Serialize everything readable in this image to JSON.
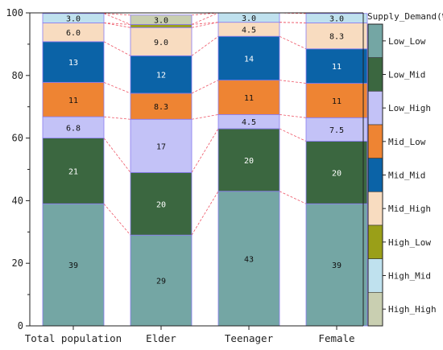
{
  "chart_data": {
    "type": "bar",
    "stacked": true,
    "percent": true,
    "categories": [
      "Total population",
      "Elder",
      "Teenager",
      "Female"
    ],
    "series": [
      {
        "name": "Low_Low",
        "color": "#74a6a4",
        "values": [
          39,
          29,
          43,
          39
        ],
        "labels": [
          "39",
          "29",
          "43",
          "39"
        ]
      },
      {
        "name": "Low_Mid",
        "color": "#3b6740",
        "values": [
          21,
          20,
          20,
          20
        ],
        "labels": [
          "21",
          "20",
          "20",
          "20"
        ]
      },
      {
        "name": "Low_High",
        "color": "#c3c2f7",
        "values": [
          6.8,
          17,
          4.5,
          7.5
        ],
        "labels": [
          "6.8",
          "17",
          "4.5",
          "7.5"
        ]
      },
      {
        "name": "Mid_Low",
        "color": "#ee8433",
        "values": [
          11,
          8.3,
          11,
          11
        ],
        "labels": [
          "11",
          "8.3",
          "11",
          "11"
        ]
      },
      {
        "name": "Mid_Mid",
        "color": "#0b63a7",
        "values": [
          13,
          12,
          14,
          11
        ],
        "labels": [
          "13",
          "12",
          "14",
          "11"
        ]
      },
      {
        "name": "Mid_High",
        "color": "#f8dcc0",
        "values": [
          6.0,
          9.0,
          4.5,
          8.3
        ],
        "labels": [
          "6.0",
          "9.0",
          "4.5",
          "8.3"
        ]
      },
      {
        "name": "High_Low",
        "color": "#9a9f18",
        "values": [
          0,
          1.0,
          0,
          0
        ],
        "labels": [
          "",
          "",
          "",
          ""
        ]
      },
      {
        "name": "High_Mid",
        "color": "#bfe1ee",
        "values": [
          3.0,
          0,
          3.0,
          3.0
        ],
        "labels": [
          "3.0",
          "",
          "3.0",
          "3.0"
        ]
      },
      {
        "name": "High_High",
        "color": "#c9cfb1",
        "values": [
          0,
          3.0,
          0,
          0
        ],
        "labels": [
          "",
          "3.0",
          "",
          ""
        ]
      }
    ],
    "label_colors": {
      "Low_Low": "#111111",
      "Low_Mid": "#ffffff",
      "Low_High": "#111111",
      "Mid_Low": "#111111",
      "Mid_Mid": "#ffffff",
      "Mid_High": "#111111",
      "High_Low": "#111111",
      "High_Mid": "#111111",
      "High_High": "#111111"
    },
    "ylim": [
      0,
      100
    ],
    "yticks": [
      "0",
      "20",
      "40",
      "60",
      "80",
      "100"
    ],
    "legend": {
      "title": "Supply_Demand(%)",
      "placement": "right",
      "order": [
        "Low_Low",
        "Low_Mid",
        "Low_High",
        "Mid_Low",
        "Mid_Mid",
        "Mid_High",
        "High_Low",
        "High_Mid",
        "High_High"
      ]
    },
    "connector_color": "#ee5566",
    "bar_edge_color": "#8a7bf0",
    "grid": false
  }
}
